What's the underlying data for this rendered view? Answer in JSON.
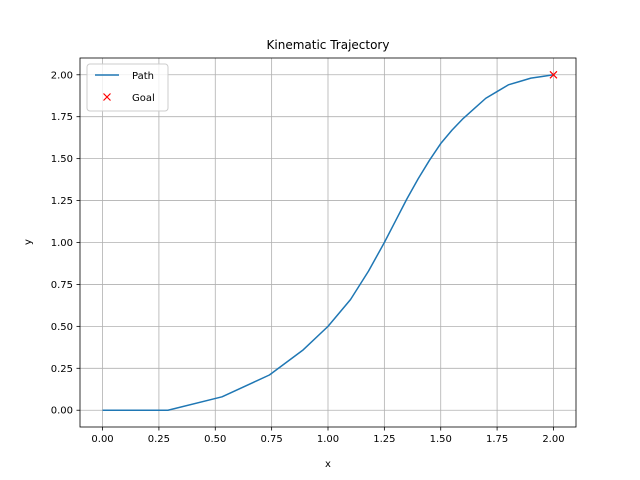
{
  "chart_data": {
    "type": "line",
    "title": "Kinematic Trajectory",
    "xlabel": "x",
    "ylabel": "y",
    "xlim": [
      -0.1,
      2.1
    ],
    "ylim": [
      -0.1,
      2.1
    ],
    "xticks": [
      0.0,
      0.25,
      0.5,
      0.75,
      1.0,
      1.25,
      1.5,
      1.75,
      2.0
    ],
    "xtick_labels": [
      "0.00",
      "0.25",
      "0.50",
      "0.75",
      "1.00",
      "1.25",
      "1.50",
      "1.75",
      "2.00"
    ],
    "yticks": [
      0.0,
      0.25,
      0.5,
      0.75,
      1.0,
      1.25,
      1.5,
      1.75,
      2.0
    ],
    "ytick_labels": [
      "0.00",
      "0.25",
      "0.50",
      "0.75",
      "1.00",
      "1.25",
      "1.50",
      "1.75",
      "2.00"
    ],
    "grid": true,
    "legend_position": "top-left",
    "series": [
      {
        "name": "Path",
        "color": "#1f77b4",
        "marker": "none",
        "x": [
          0.0,
          0.29,
          0.53,
          0.74,
          0.89,
          1.0,
          1.1,
          1.18,
          1.25,
          1.3,
          1.35,
          1.4,
          1.45,
          1.5,
          1.55,
          1.6,
          1.65,
          1.7,
          1.75,
          1.8,
          1.85,
          1.9,
          1.95,
          2.0
        ],
        "y": [
          0.0,
          0.0,
          0.08,
          0.21,
          0.36,
          0.5,
          0.66,
          0.83,
          1.0,
          1.13,
          1.26,
          1.38,
          1.49,
          1.59,
          1.67,
          1.74,
          1.8,
          1.86,
          1.9,
          1.94,
          1.96,
          1.98,
          1.99,
          2.0
        ]
      },
      {
        "name": "Goal",
        "color": "#ff0000",
        "marker": "x",
        "x": [
          2.0
        ],
        "y": [
          2.0
        ]
      }
    ]
  }
}
